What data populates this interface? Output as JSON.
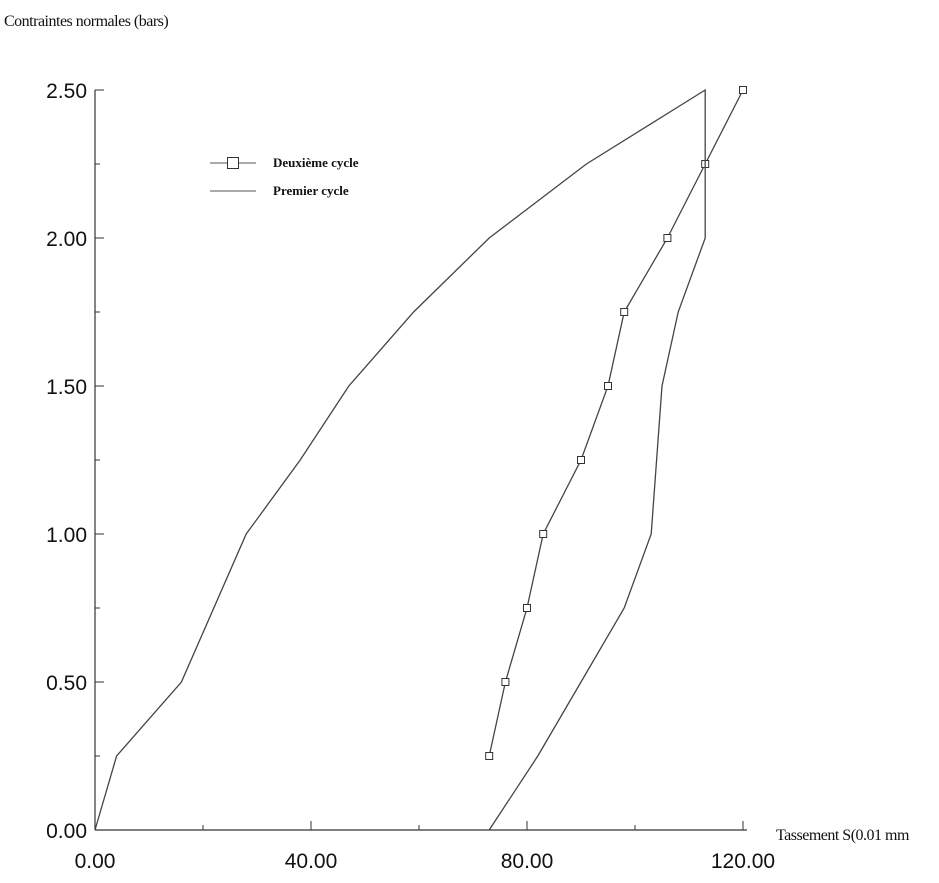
{
  "chart_data": {
    "type": "line",
    "ylabel": "Contraintes normales (bars)",
    "xlabel": "Tassement S(0.01 mm",
    "xlim": [
      0,
      120
    ],
    "ylim": [
      0,
      2.5
    ],
    "x_ticks": [
      "0.00",
      "40.00",
      "80.00",
      "120.00"
    ],
    "y_ticks": [
      "0.00",
      "0.50",
      "1.00",
      "1.50",
      "2.00",
      "2.50"
    ],
    "legend_position": "top-left",
    "grid": false,
    "series": [
      {
        "name": "Deuxième cycle",
        "marker": "square",
        "x": [
          73,
          76,
          80,
          83,
          90,
          95,
          98,
          106,
          113,
          120
        ],
        "y": [
          0.25,
          0.5,
          0.75,
          1.0,
          1.25,
          1.5,
          1.75,
          2.0,
          2.25,
          2.5
        ]
      },
      {
        "name": "Premier cycle",
        "marker": "none",
        "x": [
          0,
          4,
          16,
          28,
          38,
          47,
          59,
          73,
          91,
          113,
          113,
          108,
          105,
          103,
          98,
          90,
          82,
          73
        ],
        "y": [
          0,
          0.25,
          0.5,
          1.0,
          1.25,
          1.5,
          1.75,
          2.0,
          2.25,
          2.5,
          2.0,
          1.75,
          1.5,
          1.0,
          0.75,
          0.5,
          0.25,
          0
        ]
      }
    ]
  }
}
